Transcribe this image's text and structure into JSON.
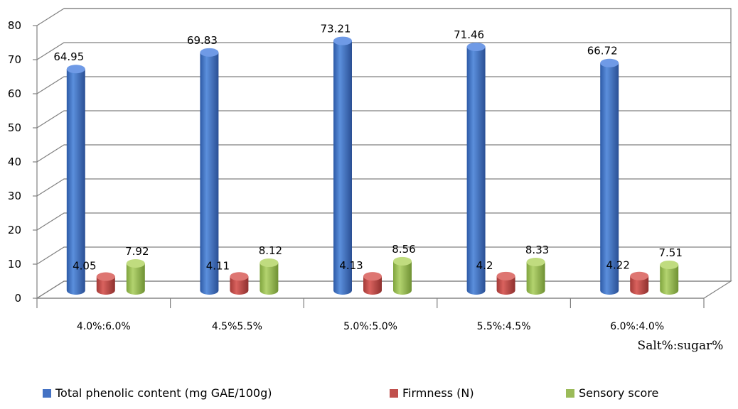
{
  "chart_data": {
    "type": "bar",
    "style": "3d-cylinder",
    "categories": [
      "4.0%:6.0%",
      "4.5%5.5%",
      "5.0%:5.0%",
      "5.5%:4.5%",
      "6.0%:4.0%"
    ],
    "series": [
      {
        "name": "Total phenolic content (mg GAE/100g)",
        "color": "#4472C4",
        "values": [
          64.95,
          69.83,
          73.21,
          71.46,
          66.72
        ],
        "labels": [
          "64.95",
          "69.83",
          "73.21",
          "71.46",
          "66.72"
        ]
      },
      {
        "name": "Firmness (N)",
        "color": "#C0504D",
        "values": [
          4.05,
          4.11,
          4.13,
          4.2,
          4.22
        ],
        "labels": [
          "4.05",
          "4.11",
          "4.13",
          "4.2",
          "4.22"
        ]
      },
      {
        "name": "Sensory score",
        "color": "#9BBB59",
        "values": [
          7.92,
          8.12,
          8.56,
          8.33,
          7.51
        ],
        "labels": [
          "7.92",
          "8.12",
          "8.56",
          "8.33",
          "7.51"
        ]
      }
    ],
    "ylim": [
      0,
      80
    ],
    "yticks": [
      "0",
      "10",
      "20",
      "30",
      "40",
      "50",
      "60",
      "70",
      "80"
    ],
    "xlabel": "Salt%:sugar%",
    "ylabel": "",
    "grid": true,
    "legend_position": "bottom"
  }
}
